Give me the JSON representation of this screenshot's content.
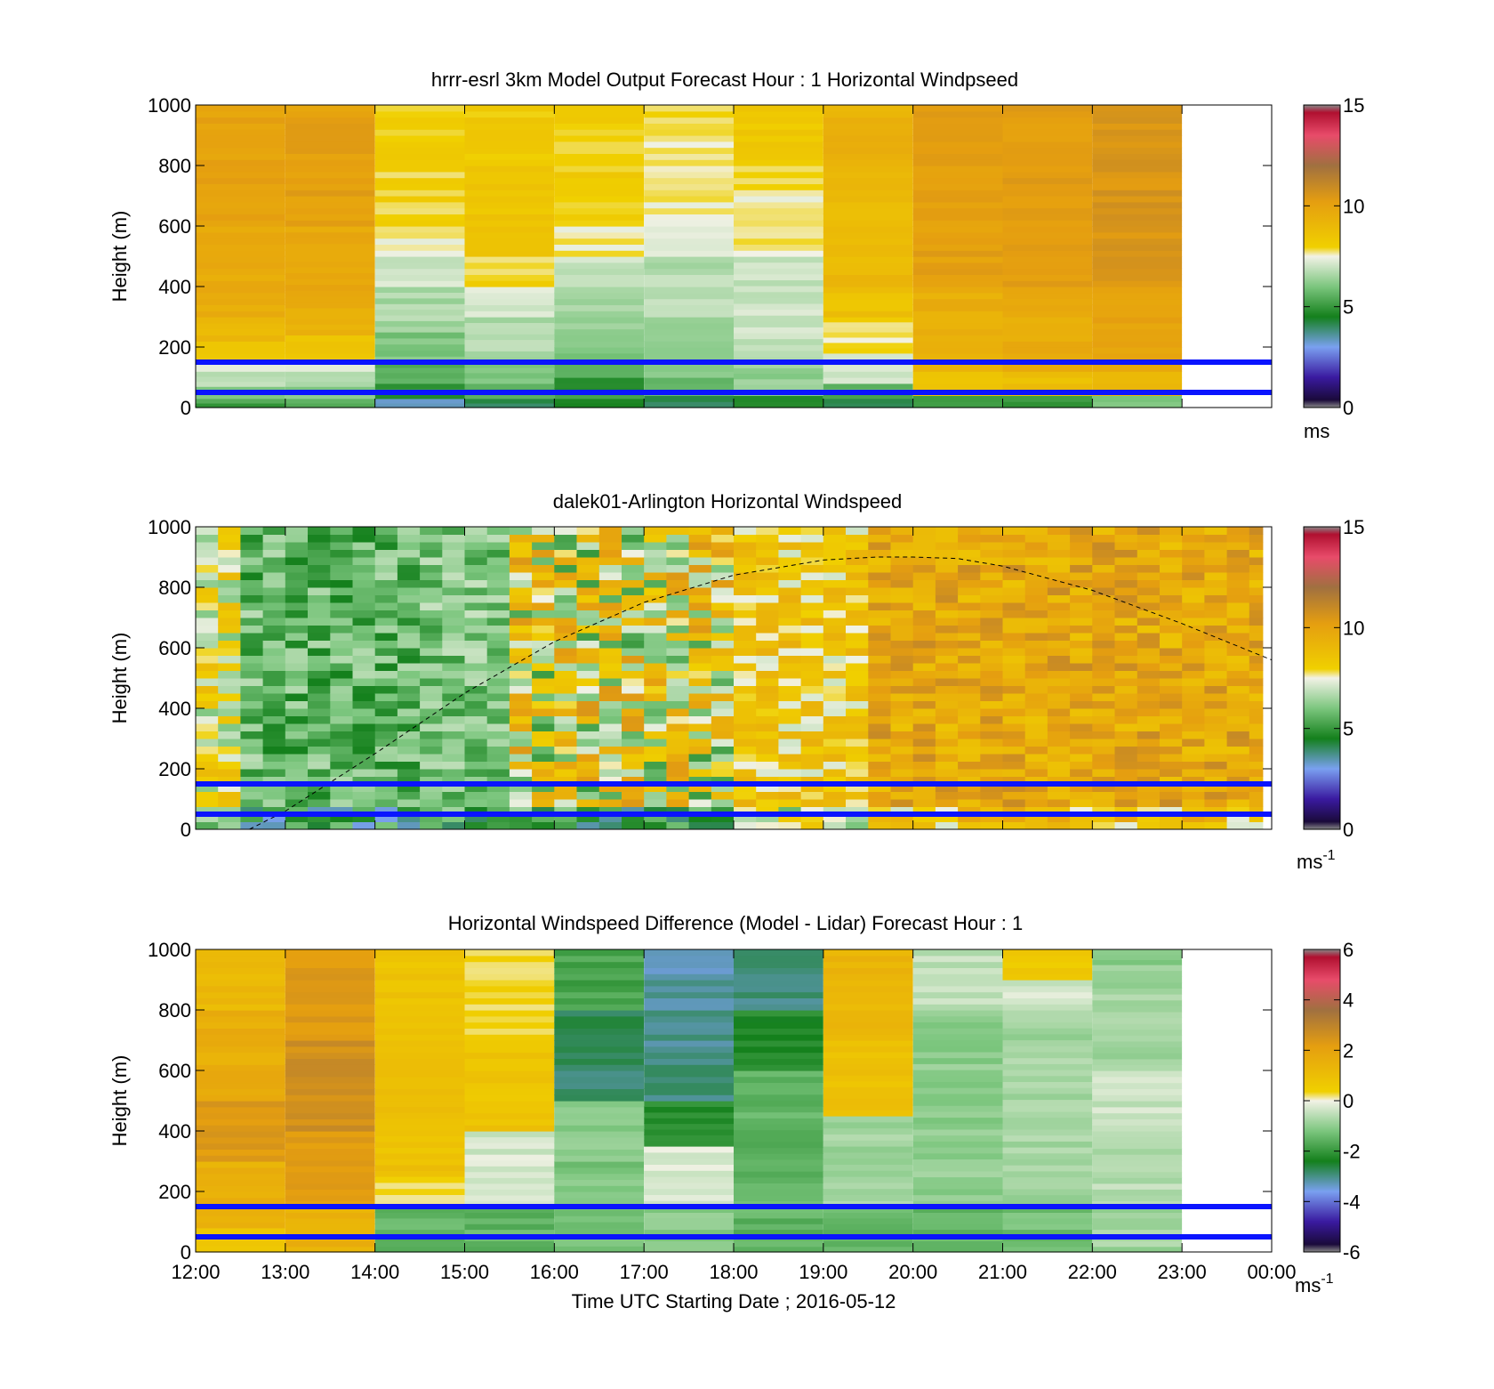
{
  "chart_data": [
    {
      "type": "heatmap",
      "title": "hrrr-esrl 3km Model Output   Forecast Hour : 1 Horizontal Windpseed",
      "ylabel": "Height (m)",
      "ylim": [
        0,
        1000
      ],
      "yticks": [
        "0",
        "200",
        "400",
        "600",
        "800",
        "1000"
      ],
      "xlim_hours": [
        12,
        24
      ],
      "colorbar": {
        "min": 0,
        "max": 15,
        "ticks": [
          "0",
          "5",
          "10",
          "15"
        ],
        "unit": "ms"
      },
      "reference_lines_m": [
        150,
        50
      ],
      "columns": [
        {
          "start": "12:00",
          "end": "13:00",
          "layers": [
            [
              0,
              30,
              5.2
            ],
            [
              30,
              70,
              6.2
            ],
            [
              70,
              120,
              6.8
            ],
            [
              120,
              160,
              7.2
            ],
            [
              160,
              220,
              8.3
            ],
            [
              220,
              300,
              9.0
            ],
            [
              300,
              600,
              9.6
            ],
            [
              600,
              1000,
              10.0
            ]
          ]
        },
        {
          "start": "13:00",
          "end": "14:00",
          "layers": [
            [
              0,
              30,
              5.5
            ],
            [
              30,
              70,
              6.0
            ],
            [
              70,
              120,
              6.8
            ],
            [
              120,
              160,
              7.4
            ],
            [
              160,
              240,
              8.5
            ],
            [
              240,
              330,
              9.2
            ],
            [
              330,
              600,
              9.7
            ],
            [
              600,
              1000,
              10.1
            ]
          ]
        },
        {
          "start": "14:00",
          "end": "15:00",
          "layers": [
            [
              0,
              30,
              3.5
            ],
            [
              30,
              80,
              5.0
            ],
            [
              80,
              150,
              5.5
            ],
            [
              150,
              250,
              6.0
            ],
            [
              250,
              400,
              6.6
            ],
            [
              400,
              500,
              7.0
            ],
            [
              500,
              600,
              7.6
            ],
            [
              600,
              1000,
              8.0
            ]
          ]
        },
        {
          "start": "15:00",
          "end": "16:00",
          "layers": [
            [
              0,
              30,
              4.0
            ],
            [
              30,
              80,
              5.5
            ],
            [
              80,
              150,
              6.0
            ],
            [
              150,
              300,
              6.6
            ],
            [
              300,
              400,
              7.2
            ],
            [
              400,
              500,
              7.9
            ],
            [
              500,
              800,
              8.5
            ],
            [
              800,
              1000,
              8.2
            ]
          ]
        },
        {
          "start": "16:00",
          "end": "17:00",
          "layers": [
            [
              0,
              30,
              4.5
            ],
            [
              30,
              100,
              5.0
            ],
            [
              100,
              200,
              5.8
            ],
            [
              200,
              400,
              6.4
            ],
            [
              400,
              500,
              7.0
            ],
            [
              500,
              600,
              7.6
            ],
            [
              600,
              1000,
              8.1
            ]
          ]
        },
        {
          "start": "17:00",
          "end": "18:00",
          "layers": [
            [
              0,
              40,
              4.0
            ],
            [
              40,
              100,
              5.5
            ],
            [
              100,
              300,
              6.2
            ],
            [
              300,
              500,
              6.7
            ],
            [
              500,
              600,
              7.1
            ],
            [
              600,
              900,
              7.6
            ],
            [
              900,
              1000,
              7.9
            ]
          ]
        },
        {
          "start": "18:00",
          "end": "19:00",
          "layers": [
            [
              0,
              40,
              4.5
            ],
            [
              40,
              150,
              6.3
            ],
            [
              150,
              500,
              7.0
            ],
            [
              500,
              700,
              7.6
            ],
            [
              700,
              800,
              7.9
            ],
            [
              800,
              1000,
              8.3
            ]
          ]
        },
        {
          "start": "19:00",
          "end": "20:00",
          "layers": [
            [
              0,
              30,
              4.0
            ],
            [
              30,
              80,
              5.5
            ],
            [
              80,
              180,
              7.0
            ],
            [
              180,
              250,
              7.7
            ],
            [
              250,
              300,
              7.9
            ],
            [
              300,
              400,
              8.6
            ],
            [
              400,
              800,
              9.0
            ],
            [
              800,
              1000,
              9.3
            ]
          ]
        },
        {
          "start": "20:00",
          "end": "21:00",
          "layers": [
            [
              0,
              40,
              5.0
            ],
            [
              40,
              120,
              8.5
            ],
            [
              120,
              400,
              9.5
            ],
            [
              400,
              1000,
              10.1
            ]
          ]
        },
        {
          "start": "21:00",
          "end": "22:00",
          "layers": [
            [
              0,
              40,
              5.0
            ],
            [
              40,
              120,
              8.7
            ],
            [
              120,
              400,
              9.6
            ],
            [
              400,
              1000,
              10.2
            ]
          ]
        },
        {
          "start": "22:00",
          "end": "23:00",
          "layers": [
            [
              0,
              40,
              6.0
            ],
            [
              40,
              120,
              9.2
            ],
            [
              120,
              400,
              10.0
            ],
            [
              400,
              1000,
              10.5
            ]
          ]
        }
      ]
    },
    {
      "type": "heatmap",
      "title": "dalek01-Arlington  Horizontal Windspeed",
      "ylabel": "Height (m)",
      "ylim": [
        0,
        1000
      ],
      "yticks": [
        "0",
        "200",
        "400",
        "600",
        "800",
        "1000"
      ],
      "xlim_hours": [
        12,
        24
      ],
      "colorbar": {
        "min": 0,
        "max": 15,
        "ticks": [
          "0",
          "5",
          "10",
          "15"
        ],
        "unit": "ms",
        "unit_exponent": "-1"
      },
      "reference_lines_m": [
        150,
        50
      ],
      "boundary_layer_curve": {
        "x_hours": [
          12.6,
          13.0,
          14.0,
          15.0,
          16.0,
          17.0,
          18.0,
          19.0,
          19.6,
          20.0,
          20.5,
          21.0,
          22.0,
          23.0,
          24.0
        ],
        "height_m": [
          0,
          60,
          250,
          450,
          620,
          750,
          840,
          890,
          900,
          900,
          895,
          870,
          790,
          680,
          560
        ]
      },
      "regimes": [
        {
          "start_hour": 12.0,
          "end_hour": 12.5,
          "top_m": 1000,
          "low_speed": 6.0,
          "high_speed": 9.0
        },
        {
          "start_hour": 12.5,
          "end_hour": 14.5,
          "top_m": 1000,
          "low_speed": 4.5,
          "high_speed": 6.8
        },
        {
          "start_hour": 14.5,
          "end_hour": 15.5,
          "top_m": 1000,
          "low_speed": 5.0,
          "high_speed": 7.0
        },
        {
          "start_hour": 15.5,
          "end_hour": 18.0,
          "top_m": 1000,
          "low_speed": 5.0,
          "high_speed": 10.5
        },
        {
          "start_hour": 18.0,
          "end_hour": 19.6,
          "top_m": 1000,
          "low_speed": 7.0,
          "high_speed": 9.5
        },
        {
          "start_hour": 19.6,
          "end_hour": 23.9,
          "top_m": 1000,
          "low_speed": 8.5,
          "high_speed": 11.0
        }
      ]
    },
    {
      "type": "heatmap",
      "title": "Horizontal Windspeed Difference (Model - Lidar) Forecast Hour : 1",
      "ylabel": "Height (m)",
      "xlabel": "Time UTC  Starting Date ; 2016-05-12",
      "ylim": [
        0,
        1000
      ],
      "yticks": [
        "0",
        "200",
        "400",
        "600",
        "800",
        "1000"
      ],
      "xlim_hours": [
        12,
        24
      ],
      "xticks": [
        "12:00",
        "13:00",
        "14:00",
        "15:00",
        "16:00",
        "17:00",
        "18:00",
        "19:00",
        "20:00",
        "21:00",
        "22:00",
        "23:00",
        "00:00"
      ],
      "colorbar": {
        "min": -6,
        "max": 6,
        "ticks": [
          "-6",
          "-4",
          "-2",
          "0",
          "2",
          "4",
          "6"
        ],
        "unit": "ms",
        "unit_exponent": "-1"
      },
      "reference_lines_m": [
        150,
        50
      ],
      "columns": [
        {
          "start": "12:00",
          "end": "13:00",
          "layers": [
            [
              0,
              80,
              0.8
            ],
            [
              80,
              300,
              1.5
            ],
            [
              300,
              500,
              2.3
            ],
            [
              500,
              800,
              1.6
            ],
            [
              800,
              1000,
              1.2
            ]
          ]
        },
        {
          "start": "13:00",
          "end": "14:00",
          "layers": [
            [
              0,
              150,
              1.5
            ],
            [
              150,
              400,
              2.2
            ],
            [
              400,
              700,
              2.6
            ],
            [
              700,
              1000,
              2.3
            ]
          ]
        },
        {
          "start": "14:00",
          "end": "15:00",
          "layers": [
            [
              0,
              150,
              -1.5
            ],
            [
              150,
              250,
              0.2
            ],
            [
              250,
              500,
              0.9
            ],
            [
              500,
              700,
              1.0
            ],
            [
              700,
              1000,
              0.8
            ]
          ]
        },
        {
          "start": "15:00",
          "end": "16:00",
          "layers": [
            [
              0,
              150,
              -1.5
            ],
            [
              150,
              400,
              -0.3
            ],
            [
              400,
              700,
              0.8
            ],
            [
              700,
              1000,
              0.3
            ]
          ]
        },
        {
          "start": "16:00",
          "end": "17:00",
          "layers": [
            [
              0,
              300,
              -1.2
            ],
            [
              300,
              500,
              -1.0
            ],
            [
              500,
              800,
              -2.8
            ],
            [
              800,
              1000,
              -1.8
            ]
          ]
        },
        {
          "start": "17:00",
          "end": "18:00",
          "layers": [
            [
              0,
              150,
              -1.0
            ],
            [
              150,
              350,
              -0.2
            ],
            [
              350,
              500,
              -2.2
            ],
            [
              500,
              800,
              -3.0
            ],
            [
              800,
              1000,
              -3.2
            ]
          ]
        },
        {
          "start": "18:00",
          "end": "19:00",
          "layers": [
            [
              0,
              150,
              -1.5
            ],
            [
              150,
              600,
              -1.5
            ],
            [
              600,
              800,
              -2.2
            ],
            [
              800,
              1000,
              -3.0
            ]
          ]
        },
        {
          "start": "19:00",
          "end": "20:00",
          "layers": [
            [
              0,
              150,
              -1.5
            ],
            [
              150,
              450,
              -0.8
            ],
            [
              450,
              700,
              0.9
            ],
            [
              700,
              1000,
              1.3
            ]
          ]
        },
        {
          "start": "20:00",
          "end": "21:00",
          "layers": [
            [
              0,
              150,
              -1.5
            ],
            [
              150,
              800,
              -1.0
            ],
            [
              800,
              1000,
              -0.5
            ]
          ]
        },
        {
          "start": "21:00",
          "end": "22:00",
          "layers": [
            [
              0,
              150,
              -1.3
            ],
            [
              150,
              800,
              -0.8
            ],
            [
              800,
              900,
              -0.3
            ],
            [
              900,
              1000,
              0.6
            ]
          ]
        },
        {
          "start": "22:00",
          "end": "23:00",
          "layers": [
            [
              0,
              150,
              -0.8
            ],
            [
              150,
              400,
              -0.6
            ],
            [
              400,
              600,
              -0.4
            ],
            [
              600,
              950,
              -0.8
            ],
            [
              950,
              1000,
              -1.0
            ]
          ]
        }
      ]
    }
  ]
}
